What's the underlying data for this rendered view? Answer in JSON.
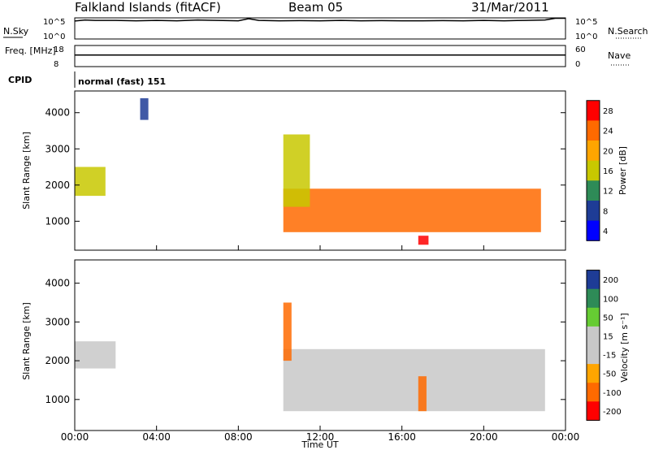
{
  "header": {
    "radar": "Falkland Islands (fitACF)",
    "beam": "Beam 05",
    "date": "31/Mar/2011"
  },
  "chart_data": [
    {
      "type": "line",
      "panel": "sky-noise-search",
      "ylabel_left": "N.Sky",
      "ylabel_right": "N.Search",
      "left_ticks": [
        "10^5",
        "10^0"
      ],
      "right_ticks": [
        "10^5",
        "10^0"
      ],
      "x_hours": [
        0,
        0.5,
        1,
        2,
        3,
        4,
        5,
        6,
        7,
        8,
        8.5,
        9,
        10,
        11,
        12,
        13,
        14,
        15,
        16,
        17,
        18,
        19,
        20,
        21,
        22,
        23,
        23.5,
        24
      ],
      "values": [
        0.85,
        0.9,
        0.88,
        0.88,
        0.86,
        0.88,
        0.86,
        0.9,
        0.88,
        0.86,
        0.96,
        0.88,
        0.86,
        0.87,
        0.86,
        0.88,
        0.86,
        0.87,
        0.86,
        0.86,
        0.87,
        0.86,
        0.88,
        0.86,
        0.88,
        0.9,
        0.98,
        0.98
      ]
    },
    {
      "type": "line",
      "panel": "frequency-nave",
      "ylabel_left": "Freq. [MHz]",
      "ylabel_right": "Nave",
      "left_ticks": [
        "18",
        "8"
      ],
      "right_ticks": [
        "60",
        "0"
      ],
      "x_hours": [
        0,
        1,
        4,
        8,
        12,
        16,
        20,
        24
      ],
      "values": [
        0.55,
        0.55,
        0.55,
        0.55,
        0.55,
        0.55,
        0.55,
        0.55
      ]
    },
    {
      "type": "heatmap",
      "panel": "power",
      "ylabel": "Slant Range [km]",
      "colorbar_label": "Power [dB]",
      "colorbar_ticks": [
        "28",
        "24",
        "20",
        "16",
        "12",
        "8",
        "4"
      ],
      "colorbar_colors": [
        "#ff0000",
        "#ff6a00",
        "#ffa500",
        "#c8c800",
        "#2e8b57",
        "#1e3c96",
        "#0000ff"
      ],
      "ylim": [
        200,
        4600
      ],
      "yticks": [
        "1000",
        "2000",
        "3000",
        "4000"
      ],
      "features": [
        {
          "t0": 10.2,
          "t1": 22.8,
          "r0": 700,
          "r1": 1900,
          "level": 0.85
        },
        {
          "t0": 10.2,
          "t1": 11.5,
          "r0": 1400,
          "r1": 3400,
          "level": 0.55
        },
        {
          "t0": 0.0,
          "t1": 1.5,
          "r0": 1700,
          "r1": 2500,
          "level": 0.55
        },
        {
          "t0": 16.8,
          "t1": 17.3,
          "r0": 350,
          "r1": 600,
          "level": 0.95
        },
        {
          "t0": 3.2,
          "t1": 3.6,
          "r0": 3800,
          "r1": 4400,
          "level": 0.25
        }
      ]
    },
    {
      "type": "heatmap",
      "panel": "velocity",
      "ylabel": "Slant Range [km]",
      "colorbar_label": "Velocity [m s⁻¹]",
      "colorbar_ticks": [
        "200",
        "100",
        "50",
        "15",
        "-15",
        "-50",
        "-100",
        "-200"
      ],
      "colorbar_colors": [
        "#1e3c96",
        "#2e8b57",
        "#66cc33",
        "#c8c8c8",
        "#c8c8c8",
        "#ffa500",
        "#ff6a00",
        "#ff0000"
      ],
      "ylim": [
        200,
        4600
      ],
      "yticks": [
        "1000",
        "2000",
        "3000",
        "4000"
      ],
      "xticks": [
        "00:00",
        "04:00",
        "08:00",
        "12:00",
        "16:00",
        "20:00",
        "00:00"
      ],
      "xlabel": "Time UT",
      "features": [
        {
          "t0": 10.2,
          "t1": 23.0,
          "r0": 700,
          "r1": 2300,
          "level": 0.5
        },
        {
          "t0": 0.0,
          "t1": 2.0,
          "r0": 1800,
          "r1": 2500,
          "level": 0.5
        },
        {
          "t0": 10.2,
          "t1": 10.6,
          "r0": 2000,
          "r1": 3500,
          "level": 0.2
        },
        {
          "t0": 16.8,
          "t1": 17.2,
          "r0": 700,
          "r1": 1600,
          "level": 0.2
        }
      ]
    }
  ],
  "cpid": {
    "label": "CPID",
    "mode": "normal (fast) 151"
  }
}
